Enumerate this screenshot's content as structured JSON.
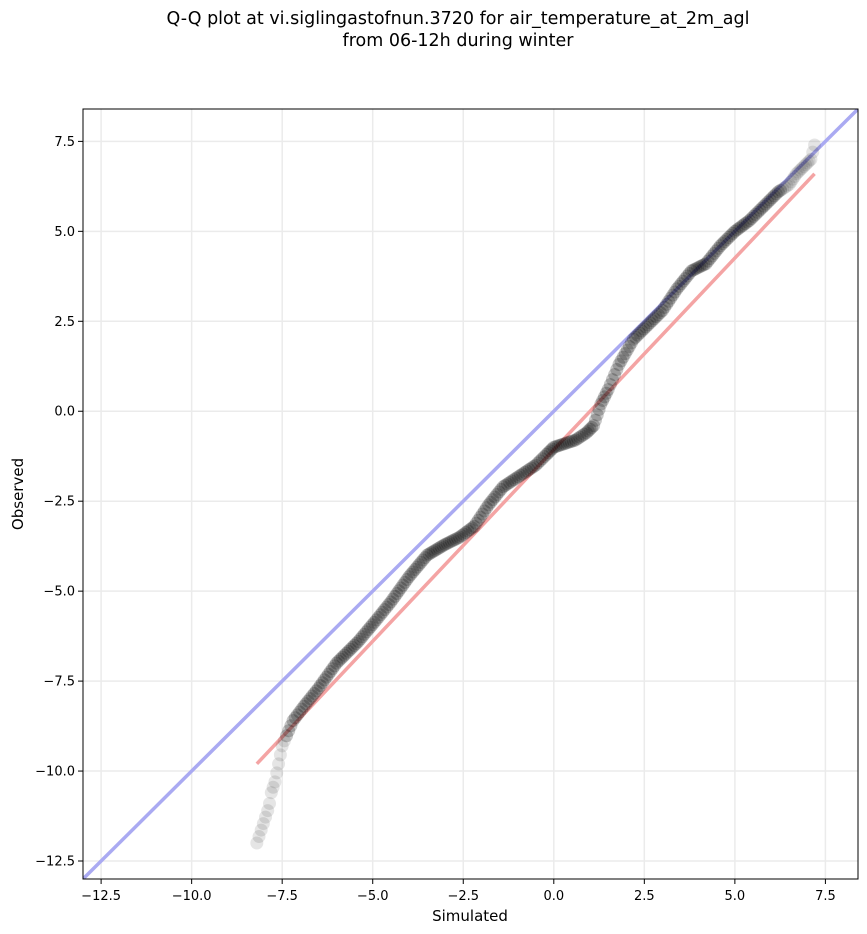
{
  "chart_data": {
    "type": "scatter",
    "title_lines": [
      "Q-Q plot at vi.siglingastofnun.3720 for air_temperature_at_2m_agl",
      "from 06-12h during winter"
    ],
    "xlabel": "Simulated",
    "ylabel": "Observed",
    "xlim": [
      -13.0,
      8.4
    ],
    "ylim": [
      -13.0,
      8.4
    ],
    "xticks": [
      -12.5,
      -10.0,
      -7.5,
      -5.0,
      -2.5,
      0.0,
      2.5,
      5.0,
      7.5
    ],
    "yticks": [
      -12.5,
      -10.0,
      -7.5,
      -5.0,
      -2.5,
      0.0,
      2.5,
      5.0,
      7.5
    ],
    "xtick_labels": [
      "−12.5",
      "−10.0",
      "−7.5",
      "−5.0",
      "−2.5",
      "0.0",
      "2.5",
      "5.0",
      "7.5"
    ],
    "ytick_labels": [
      "−12.5",
      "−10.0",
      "−7.5",
      "−5.0",
      "−2.5",
      "0.0",
      "2.5",
      "5.0",
      "7.5"
    ],
    "grid": true,
    "colors": {
      "points": "#000000",
      "identity_line": "#aaaaf2",
      "fit_line": "#f4a4a4",
      "grid": "#ebebeb"
    },
    "identity_line": {
      "x": [
        -13.0,
        8.4
      ],
      "y": [
        -13.0,
        8.4
      ]
    },
    "fit_line": {
      "x": [
        -8.2,
        7.2
      ],
      "y": [
        -9.8,
        6.6
      ]
    },
    "quantile_curve": {
      "x": [
        -8.2,
        -7.9,
        -7.85,
        -7.8,
        -7.7,
        -7.6,
        -7.5,
        -7.2,
        -6.9,
        -6.5,
        -6.0,
        -5.4,
        -4.9,
        -4.5,
        -4.0,
        -3.5,
        -3.0,
        -2.6,
        -2.2,
        -1.8,
        -1.4,
        -1.1,
        -0.8,
        -0.5,
        -0.2,
        0.0,
        0.3,
        0.6,
        0.9,
        1.1,
        1.3,
        1.5,
        1.8,
        2.2,
        2.6,
        3.0,
        3.4,
        3.8,
        4.2,
        4.6,
        5.0,
        5.4,
        5.8,
        6.2,
        6.5,
        6.7,
        6.9,
        7.1,
        7.2
      ],
      "y": [
        -12.0,
        -11.1,
        -10.9,
        -10.6,
        -10.3,
        -9.8,
        -9.3,
        -8.6,
        -8.2,
        -7.7,
        -7.0,
        -6.4,
        -5.8,
        -5.3,
        -4.6,
        -4.0,
        -3.7,
        -3.5,
        -3.2,
        -2.6,
        -2.1,
        -1.9,
        -1.7,
        -1.5,
        -1.2,
        -1.0,
        -0.9,
        -0.8,
        -0.6,
        -0.4,
        0.2,
        0.6,
        1.3,
        2.0,
        2.4,
        2.8,
        3.4,
        3.9,
        4.1,
        4.6,
        5.0,
        5.3,
        5.7,
        6.1,
        6.3,
        6.6,
        6.8,
        7.0,
        7.4
      ]
    }
  }
}
